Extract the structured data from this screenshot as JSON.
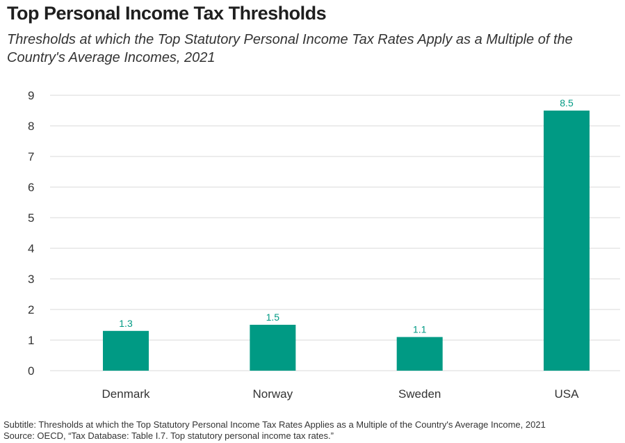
{
  "title": "Top Personal Income Tax Thresholds",
  "subtitle": "Thresholds at which the Top Statutory Personal Income Tax Rates Apply as a Multiple of the Country's Average Incomes, 2021",
  "footer": {
    "note": "Subtitle: Thresholds at which the Top Statutory Personal Income Tax Rates Applies as a Multiple of the Country's Average Income, 2021",
    "source": "Source: OECD, “Tax Database: Table I.7. Top statutory personal income tax rates.”"
  },
  "colors": {
    "bar": "#009a84",
    "label": "#009a84",
    "grid": "#d9d9d9"
  },
  "chart_data": {
    "type": "bar",
    "categories": [
      "Denmark",
      "Norway",
      "Sweden",
      "USA"
    ],
    "values": [
      1.3,
      1.5,
      1.1,
      8.5
    ],
    "data_labels": [
      "1.3",
      "1.5",
      "1.1",
      "8.5"
    ],
    "title": "Top Personal Income Tax Thresholds",
    "xlabel": "",
    "ylabel": "",
    "ylim": [
      0,
      9
    ],
    "yticks": [
      0,
      1,
      2,
      3,
      4,
      5,
      6,
      7,
      8,
      9
    ],
    "grid": true,
    "legend": "none"
  }
}
